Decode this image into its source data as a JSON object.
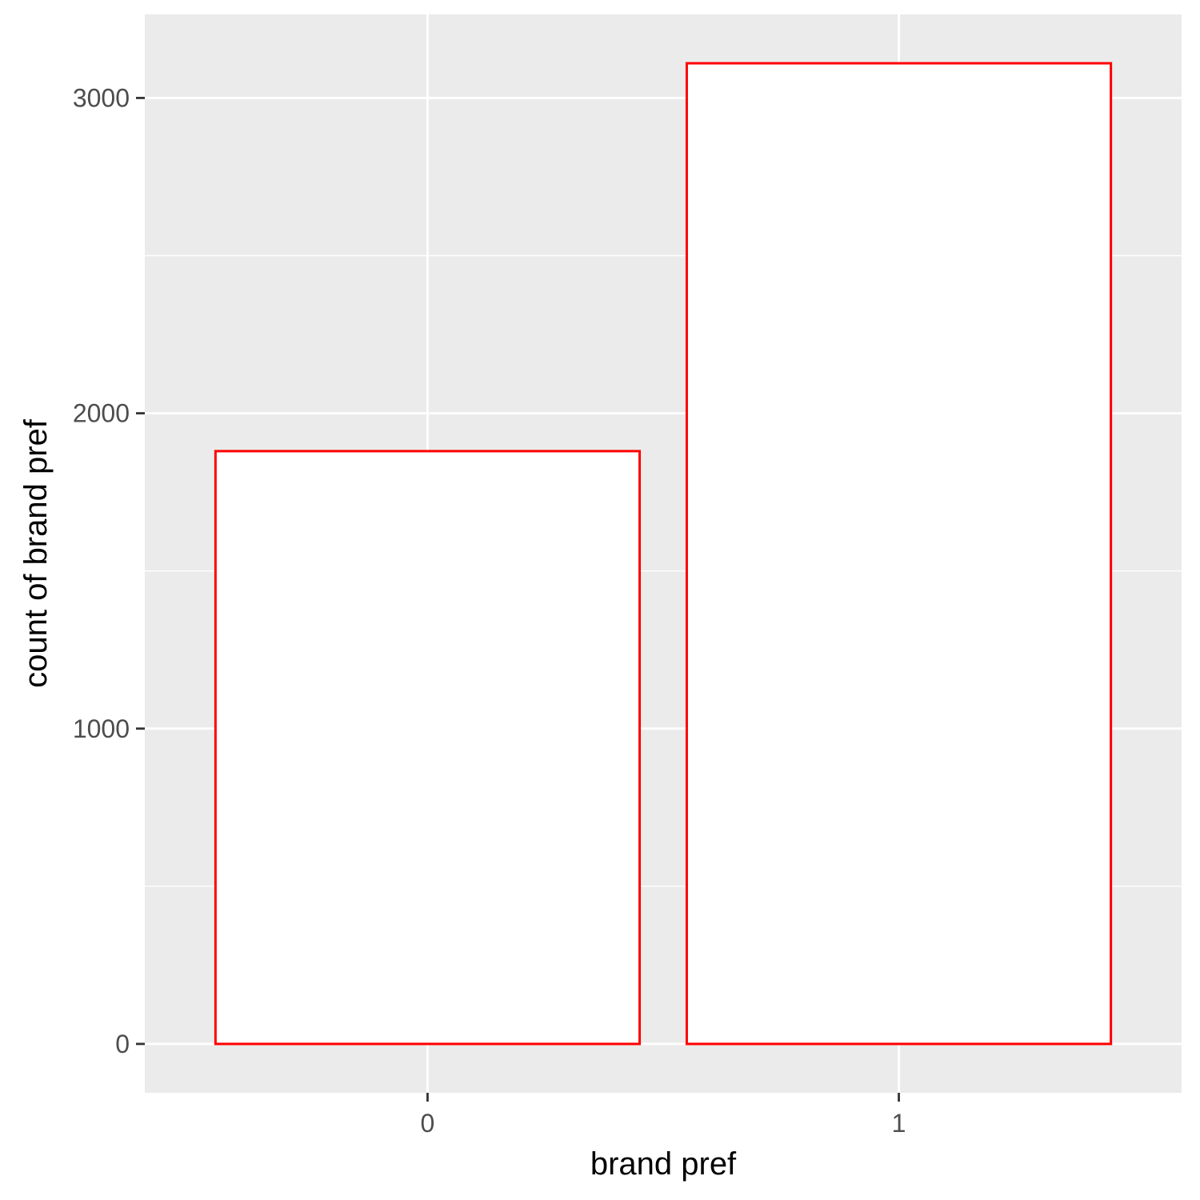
{
  "chart_data": {
    "type": "bar",
    "categories": [
      "0",
      "1"
    ],
    "values": [
      1880,
      3110
    ],
    "xlabel": "brand pref",
    "ylabel": "count of brand pref",
    "ylim": [
      -155,
      3265
    ],
    "yticks": [
      0,
      1000,
      2000,
      3000
    ],
    "minor_yticks": [
      500,
      1500,
      2500
    ],
    "grid": true,
    "legend": "none",
    "colors": {
      "panel_background": "#ebebeb",
      "gridline": "#ffffff",
      "bar_fill": "#ffffff",
      "bar_outline": "#ff0000",
      "tick_mark": "#333333"
    }
  }
}
